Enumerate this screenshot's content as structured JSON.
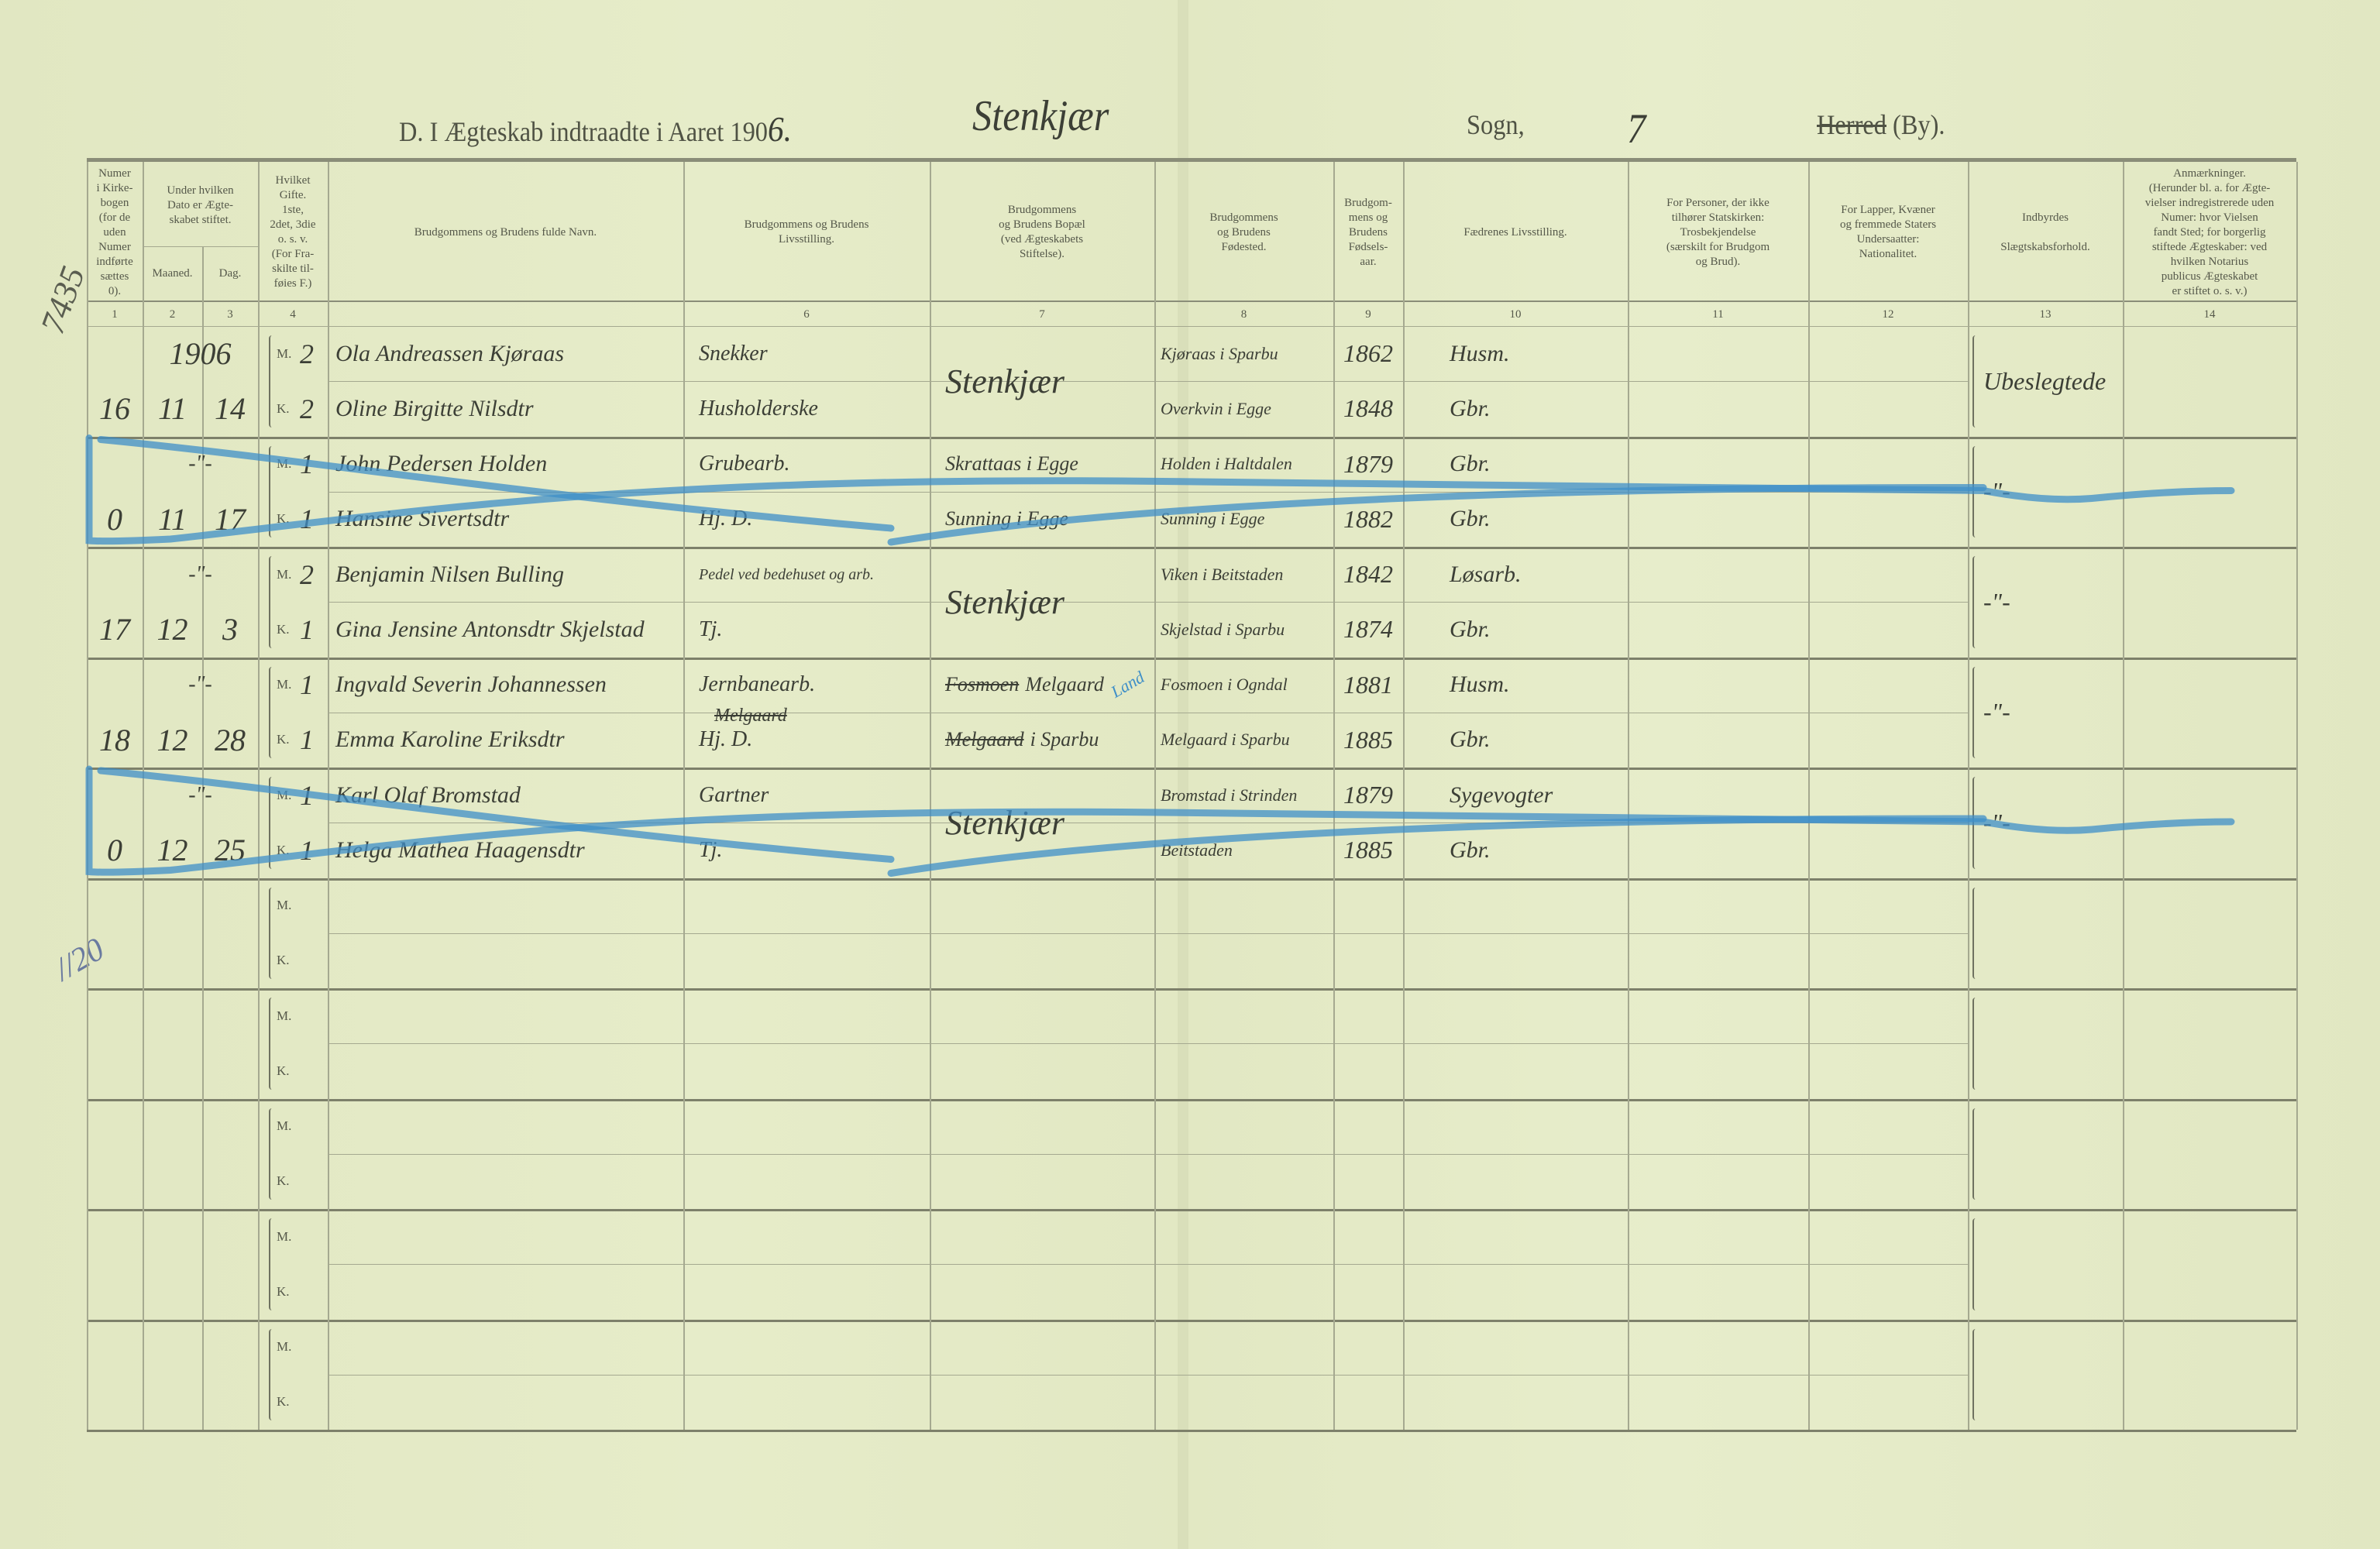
{
  "title": {
    "prefix": "D.  I Ægteskab indtraadte i Aaret 190",
    "year_digit": "6.",
    "parish": "Stenkjær",
    "sogn_label": "Sogn,",
    "sogn_value": "7",
    "herred_label": "Herred",
    "by_label": "(By)."
  },
  "columns": [
    {
      "num": "1",
      "header": "Numer\ni Kirke-\nbogen\n(for de\nuden\nNumer\nindførte\nsættes\n0)."
    },
    {
      "num": "2",
      "header": "Maaned."
    },
    {
      "num": "3",
      "header": "Dag."
    },
    {
      "num": "4",
      "header": "Hvilket\nGifte.\n1ste,\n2det, 3die\no. s. v.\n(For Fra-\nskilte til-\nføies F.)"
    },
    {
      "num": "",
      "header": "Brudgommens og Brudens fulde Navn."
    },
    {
      "num": "6",
      "header": "Brudgommens og Brudens\nLivsstilling."
    },
    {
      "num": "7",
      "header": "Brudgommens\nog Brudens Bopæl\n(ved Ægteskabets\nStiftelse)."
    },
    {
      "num": "8",
      "header": "Brudgommens\nog Brudens\nFødested."
    },
    {
      "num": "9",
      "header": "Brudgom-\nmens og\nBrudens\nFødsels-\naar."
    },
    {
      "num": "10",
      "header": "Fædrenes Livsstilling."
    },
    {
      "num": "11",
      "header": "For Personer, der ikke\ntilhører Statskirken:\nTrosbekjendelse\n(særskilt for Brudgom\nog Brud)."
    },
    {
      "num": "12",
      "header": "For Lapper, Kvæner\nog fremmede Staters\nUndersaatter:\nNationalitet."
    },
    {
      "num": "13",
      "header": "Indbyrdes\n\nSlægtskabsforhold."
    },
    {
      "num": "14",
      "header": "Anmærkninger.\n(Herunder bl. a. for Ægte-\nvielser indregistrerede uden\nNumer: hvor Vielsen\nfandt Sted; for borgerlig\nstiftede Ægteskaber: ved\nhvilken Notarius\npublicus Ægteskabet\ner stiftet o. s. v.)"
    }
  ],
  "date_group_header": "Under hvilken\nDato er Ægte-\nskabet stiftet.",
  "margin_notes": {
    "top": "7435",
    "lower": "//20"
  },
  "entries": [
    {
      "number": "16",
      "year": "1906",
      "month": "11",
      "day": "14",
      "crossed_out": false,
      "relation": "Ubeslegtede",
      "groom": {
        "marker": "M.",
        "gifte": "2",
        "name": "Ola Andreassen Kjøraas",
        "occupation": "Snekker",
        "residence": "Stenkjær",
        "birthplace": "Kjøraas i Sparbu",
        "birth_year": "1862",
        "father": "Husm."
      },
      "bride": {
        "marker": "K.",
        "gifte": "2",
        "name": "Oline Birgitte Nilsdtr",
        "occupation": "Husholderske",
        "residence": "",
        "birthplace": "Overkvin i Egge",
        "birth_year": "1848",
        "father": "Gbr."
      }
    },
    {
      "number": "0",
      "year": "",
      "month": "11",
      "day": "17",
      "month_ditto": "-\"-",
      "crossed_out": true,
      "relation": "-\"-",
      "groom": {
        "marker": "M.",
        "gifte": "1",
        "name": "John Pedersen Holden",
        "occupation": "Grubearb.",
        "residence": "Skrattaas i Egge",
        "birthplace": "Holden i Haltdalen",
        "birth_year": "1879",
        "father": "Gbr."
      },
      "bride": {
        "marker": "K.",
        "gifte": "1",
        "name": "Hansine Sivertsdtr",
        "occupation": "Hj. D.",
        "residence": "Sunning i Egge",
        "birthplace": "Sunning i Egge",
        "birth_year": "1882",
        "father": "Gbr."
      }
    },
    {
      "number": "17",
      "year": "",
      "month": "12",
      "day": "3",
      "month_ditto": "-\"-",
      "crossed_out": false,
      "relation": "-\"-",
      "groom": {
        "marker": "M.",
        "gifte": "2",
        "name": "Benjamin Nilsen Bulling",
        "occupation": "Pedel ved bedehuset og arb.",
        "residence": "Stenkjær",
        "birthplace": "Viken i Beitstaden",
        "birth_year": "1842",
        "father": "Løsarb."
      },
      "bride": {
        "marker": "K.",
        "gifte": "1",
        "name": "Gina Jensine Antonsdtr Skjelstad",
        "occupation": "Tj.",
        "residence": "",
        "birthplace": "Skjelstad i Sparbu",
        "birth_year": "1874",
        "father": "Gbr."
      }
    },
    {
      "number": "18",
      "year": "",
      "month": "12",
      "day": "28",
      "month_ditto": "-\"-",
      "crossed_out": false,
      "relation": "-\"-",
      "groom": {
        "marker": "M.",
        "gifte": "1",
        "name": "Ingvald Severin Johannessen",
        "occupation": "Jernbanearb.",
        "occupation_struck": "Melgaard",
        "residence_struck": "Fosmoen",
        "residence": "Melgaard",
        "residence_note": "Land",
        "birthplace": "Fosmoen i Ogndal",
        "birth_year": "1881",
        "father": "Husm."
      },
      "bride": {
        "marker": "K.",
        "gifte": "1",
        "name": "Emma Karoline Eriksdtr",
        "occupation": "Hj. D.",
        "residence_struck": "Melgaard",
        "residence": "i Sparbu",
        "birthplace": "Melgaard i Sparbu",
        "birth_year": "1885",
        "father": "Gbr."
      }
    },
    {
      "number": "0",
      "year": "",
      "month": "12",
      "day": "25",
      "month_ditto": "-\"-",
      "crossed_out": true,
      "relation": "-\"-",
      "groom": {
        "marker": "M.",
        "gifte": "1",
        "name": "Karl Olaf Bromstad",
        "occupation": "Gartner",
        "residence": "Stenkjær",
        "birthplace": "Bromstad i Strinden",
        "birth_year": "1879",
        "father": "Sygevogter"
      },
      "bride": {
        "marker": "K.",
        "gifte": "1",
        "name": "Helga Mathea Haagensdtr",
        "occupation": "Tj.",
        "residence": "",
        "birthplace": "Beitstaden",
        "birth_year": "1885",
        "father": "Gbr."
      }
    },
    {
      "number": "",
      "month": "",
      "day": "",
      "crossed_out": false,
      "relation": "",
      "groom": {
        "marker": "M."
      },
      "bride": {
        "marker": "K."
      }
    },
    {
      "number": "",
      "month": "",
      "day": "",
      "crossed_out": false,
      "relation": "",
      "groom": {
        "marker": "M."
      },
      "bride": {
        "marker": "K."
      }
    },
    {
      "number": "",
      "month": "",
      "day": "",
      "crossed_out": false,
      "relation": "",
      "groom": {
        "marker": "M."
      },
      "bride": {
        "marker": "K."
      }
    },
    {
      "number": "",
      "month": "",
      "day": "",
      "crossed_out": false,
      "relation": "",
      "groom": {
        "marker": "M."
      },
      "bride": {
        "marker": "K."
      }
    },
    {
      "number": "",
      "month": "",
      "day": "",
      "crossed_out": false,
      "relation": "",
      "groom": {
        "marker": "M."
      },
      "bride": {
        "marker": "K."
      }
    }
  ],
  "colors": {
    "paper": "#e3e9c5",
    "ink": "#3c3f36",
    "blue_pencil": "#3f8fc8",
    "rule": "#8a8d78"
  }
}
